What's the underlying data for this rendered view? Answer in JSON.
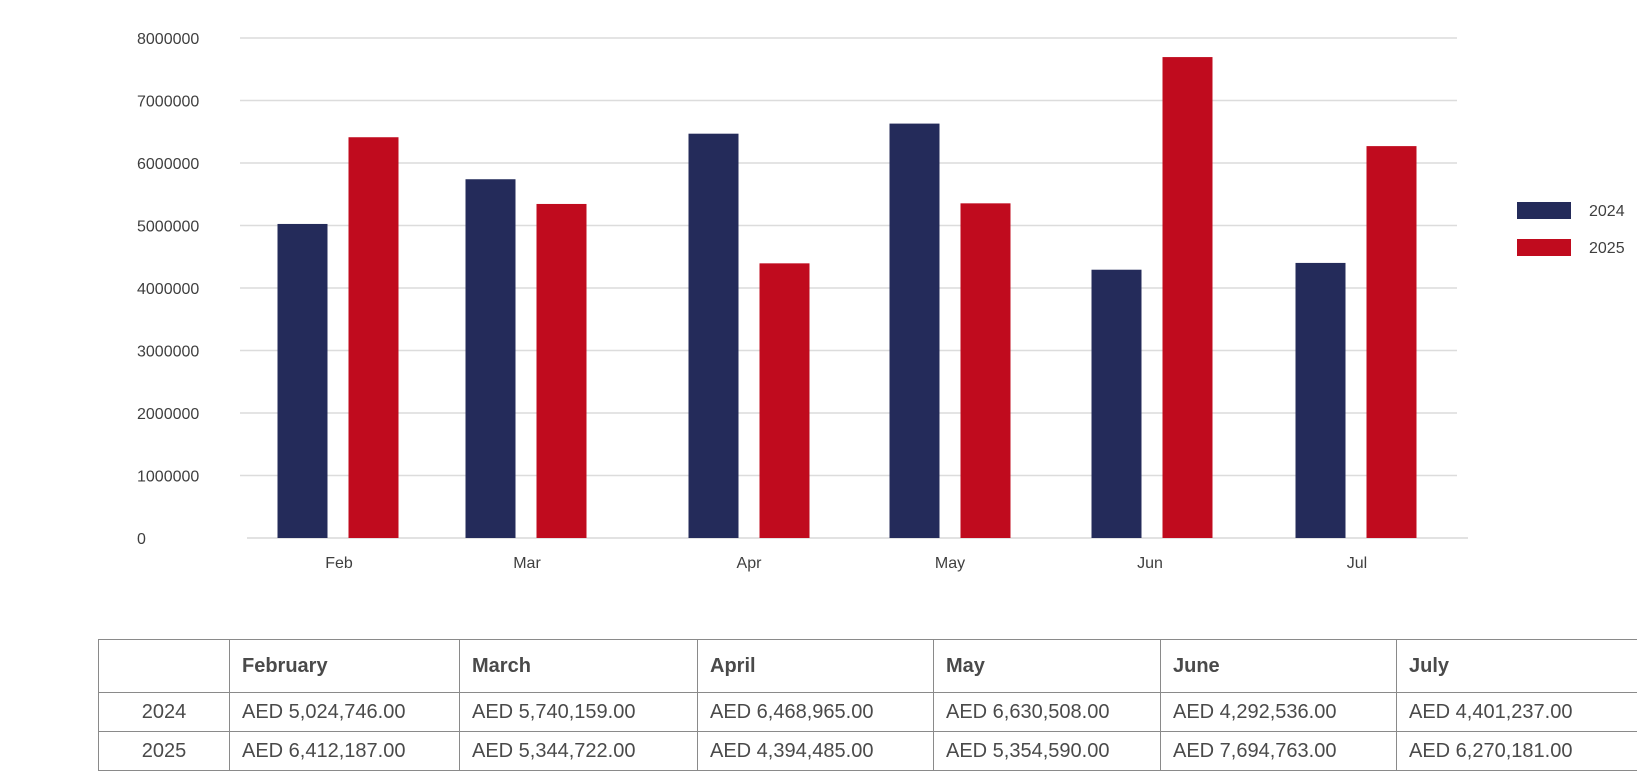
{
  "chart_data": {
    "type": "bar",
    "categories": [
      "Feb",
      "Mar",
      "Apr",
      "May",
      "Jun",
      "Jul"
    ],
    "series": [
      {
        "name": "2024",
        "color": "#242b5a",
        "values": [
          5024746,
          5740159,
          6468965,
          6630508,
          4292536,
          4401237
        ]
      },
      {
        "name": "2025",
        "color": "#c00b1e",
        "values": [
          6412187,
          5344722,
          4394485,
          5354590,
          7694763,
          6270181
        ]
      }
    ],
    "yticks": [
      "0",
      "1000000",
      "2000000",
      "3000000",
      "4000000",
      "5000000",
      "6000000",
      "7000000",
      "8000000"
    ],
    "ylim": [
      0,
      8000000
    ],
    "grid": true,
    "legend_position": "right",
    "title": "",
    "xlabel": "",
    "ylabel": ""
  },
  "table": {
    "headers": [
      "",
      "February",
      "March",
      "April",
      "May",
      "June",
      "July"
    ],
    "rows": [
      {
        "label": "2024",
        "cells": [
          "AED 5,024,746.00",
          "AED 5,740,159.00",
          "AED 6,468,965.00",
          "AED 6,630,508.00",
          "AED 4,292,536.00",
          "AED 4,401,237.00"
        ]
      },
      {
        "label": "2025",
        "cells": [
          "AED 6,412,187.00",
          "AED 5,344,722.00",
          "AED 4,394,485.00",
          "AED 5,354,590.00",
          "AED 7,694,763.00",
          "AED 6,270,181.00"
        ]
      }
    ]
  }
}
